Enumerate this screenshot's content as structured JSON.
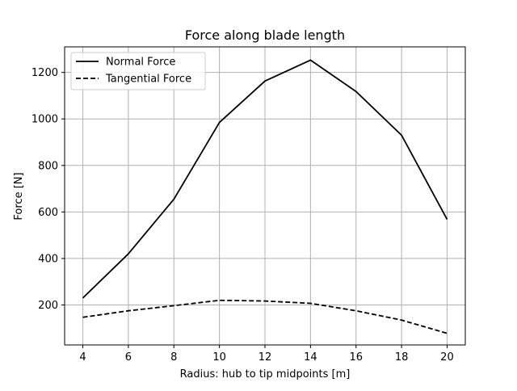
{
  "chart_data": {
    "type": "line",
    "title": "Force along blade length",
    "xlabel": "Radius: hub to tip midpoints [m]",
    "ylabel": "Force [N]",
    "x": [
      4,
      6,
      8,
      10,
      12,
      14,
      16,
      18,
      20
    ],
    "xlim": [
      3.2,
      20.8
    ],
    "ylim": [
      28,
      1310
    ],
    "xticks": [
      4,
      6,
      8,
      10,
      12,
      14,
      16,
      18,
      20
    ],
    "yticks": [
      200,
      400,
      600,
      800,
      1000,
      1200
    ],
    "grid": true,
    "legend_position": "top-left",
    "series": [
      {
        "name": "Normal Force",
        "line_style": "solid",
        "color": "#000000",
        "values": [
          230,
          420,
          655,
          985,
          1163,
          1253,
          1118,
          930,
          568
        ]
      },
      {
        "name": "Tangential Force",
        "line_style": "dashed",
        "color": "#000000",
        "values": [
          147,
          175,
          197,
          220,
          217,
          207,
          175,
          135,
          78
        ]
      }
    ]
  }
}
